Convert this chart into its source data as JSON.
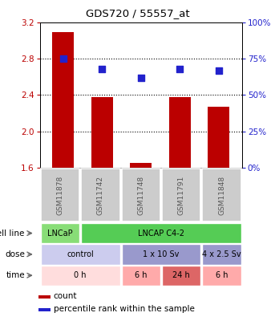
{
  "title": "GDS720 / 55557_at",
  "samples": [
    "GSM11878",
    "GSM11742",
    "GSM11748",
    "GSM11791",
    "GSM11848"
  ],
  "bar_values": [
    3.1,
    2.38,
    1.65,
    2.38,
    2.27
  ],
  "dot_values": [
    75,
    68,
    62,
    68,
    67
  ],
  "ylim_left": [
    1.6,
    3.2
  ],
  "ylim_right": [
    0,
    100
  ],
  "yticks_left": [
    1.6,
    2.0,
    2.4,
    2.8,
    3.2
  ],
  "yticks_right": [
    0,
    25,
    50,
    75,
    100
  ],
  "bar_color": "#bb0000",
  "dot_color": "#2222cc",
  "sample_bg": "#cccccc",
  "cell_line_row": {
    "label": "cell line",
    "cells": [
      {
        "text": "LNCaP",
        "colspan": 1,
        "color": "#88dd77"
      },
      {
        "text": "LNCAP C4-2",
        "colspan": 4,
        "color": "#55cc55"
      }
    ]
  },
  "dose_row": {
    "label": "dose",
    "cells": [
      {
        "text": "control",
        "colspan": 2,
        "color": "#ccccee"
      },
      {
        "text": "1 x 10 Sv",
        "colspan": 2,
        "color": "#9999cc"
      },
      {
        "text": "4 x 2.5 Sv",
        "colspan": 1,
        "color": "#9999cc"
      }
    ]
  },
  "time_row": {
    "label": "time",
    "cells": [
      {
        "text": "0 h",
        "colspan": 2,
        "color": "#ffdddd"
      },
      {
        "text": "6 h",
        "colspan": 1,
        "color": "#ffaaaa"
      },
      {
        "text": "24 h",
        "colspan": 1,
        "color": "#dd6666"
      },
      {
        "text": "6 h",
        "colspan": 1,
        "color": "#ffaaaa"
      }
    ]
  },
  "legend_items": [
    {
      "color": "#bb0000",
      "label": "count"
    },
    {
      "color": "#2222cc",
      "label": "percentile rank within the sample"
    }
  ]
}
